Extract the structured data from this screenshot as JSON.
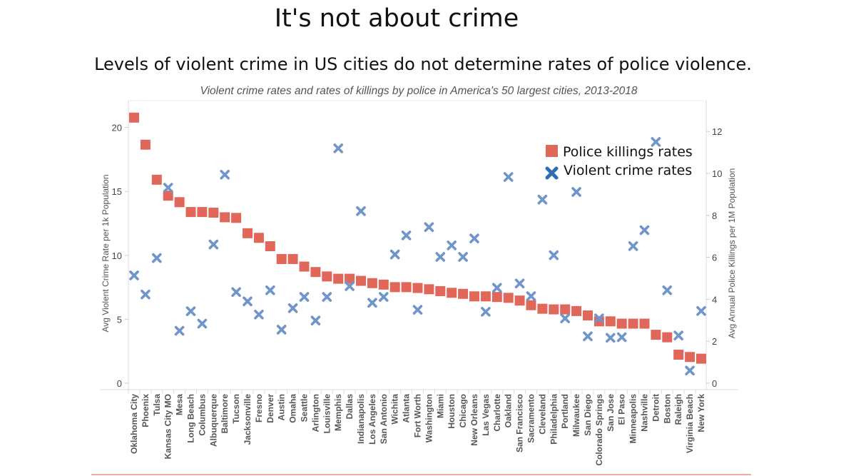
{
  "header": {
    "title": "It's not about crime",
    "subtitle": "Levels of violent crime in US cities do not determine rates of police violence."
  },
  "chart_data": {
    "type": "scatter",
    "title": "Violent crime rates and rates of killings by police in America's 50 largest cities, 2013-2018",
    "ylabel_left": "Avg Violent Crime Rate per 1k Population",
    "ylabel_right": "Avg Annual Police Killings per 1M Population",
    "ylim_left": [
      0,
      22.1
    ],
    "ylim_right": [
      0,
      13.47
    ],
    "yticks_left": [
      "0",
      "5",
      "10",
      "15",
      "20"
    ],
    "yticks_right": [
      "0",
      "2",
      "4",
      "6",
      "8",
      "10",
      "12"
    ],
    "legend_placement": "top-right",
    "categories": [
      "Oklahoma City",
      "Phoenix",
      "Tulsa",
      "Kansas City MO",
      "Mesa",
      "Long Beach",
      "Columbus",
      "Albuquerque",
      "Baltimore",
      "Tucson",
      "Jacksonville",
      "Fresno",
      "Denver",
      "Austin",
      "Omaha",
      "Seattle",
      "Arlington",
      "Louisville",
      "Memphis",
      "Dallas",
      "Indianapolis",
      "Los Angeles",
      "San Antonio",
      "Wichita",
      "Atlanta",
      "Fort Worth",
      "Washington",
      "Miami",
      "Houston",
      "Chicago",
      "New Orleans",
      "Las Vegas",
      "Charlotte",
      "Oakland",
      "San Francisco",
      "Sacramento",
      "Cleveland",
      "Philadelphia",
      "Portland",
      "Milwaukee",
      "San Diego",
      "Colorado Springs",
      "San Jose",
      "El Paso",
      "Minneapolis",
      "Nashville",
      "Detroit",
      "Boston",
      "Raleigh",
      "Virginia Beach",
      "New York"
    ],
    "series": [
      {
        "name": "Police killings rates",
        "axis": "right",
        "marker": "square",
        "color": "#e06759",
        "values": [
          12.66,
          11.37,
          9.7,
          8.94,
          8.63,
          8.16,
          8.16,
          8.13,
          7.91,
          7.88,
          7.15,
          6.93,
          6.53,
          5.92,
          5.92,
          5.56,
          5.3,
          5.09,
          4.98,
          4.98,
          4.88,
          4.77,
          4.7,
          4.58,
          4.58,
          4.54,
          4.48,
          4.39,
          4.31,
          4.26,
          4.14,
          4.14,
          4.11,
          4.07,
          3.94,
          3.72,
          3.55,
          3.52,
          3.52,
          3.44,
          3.23,
          2.95,
          2.95,
          2.84,
          2.84,
          2.84,
          2.31,
          2.19,
          1.36,
          1.25,
          1.17
        ]
      },
      {
        "name": "Violent crime rates",
        "axis": "left",
        "marker": "cross",
        "color": "#6f95cc",
        "values": [
          8.43,
          6.94,
          9.79,
          15.29,
          4.1,
          5.63,
          4.66,
          10.85,
          16.31,
          7.13,
          6.4,
          5.37,
          7.27,
          4.19,
          5.87,
          6.75,
          4.9,
          6.75,
          18.37,
          7.59,
          13.46,
          6.29,
          6.75,
          10.07,
          11.56,
          5.74,
          12.21,
          9.88,
          10.78,
          9.88,
          11.32,
          5.59,
          7.46,
          16.13,
          7.8,
          6.81,
          14.36,
          10.01,
          5.07,
          14.96,
          3.67,
          5.07,
          3.55,
          3.6,
          10.72,
          11.97,
          18.87,
          7.27,
          3.73,
          0.99,
          5.65
        ]
      }
    ]
  },
  "colors": {
    "legend_cross": "#2f6db5",
    "footer_line": "#f08a8a"
  }
}
